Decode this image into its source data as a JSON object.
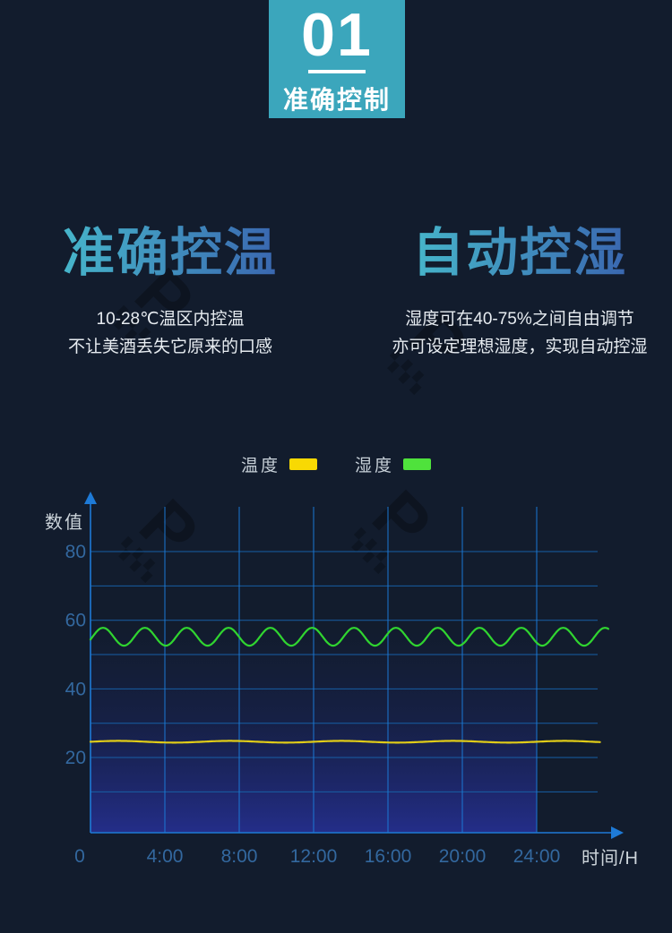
{
  "page": {
    "background": "#121c2d"
  },
  "badge": {
    "number": "01",
    "label": "准确控制",
    "bg_color": "#3ba6bc"
  },
  "features": [
    {
      "title": "准确控温",
      "lines": [
        "10-28℃温区内控温",
        "不让美酒丢失它原来的口感"
      ]
    },
    {
      "title": "自动控湿",
      "lines": [
        "湿度可在40-75%之间自由调节",
        "亦可设定理想湿度，实现自动控湿"
      ]
    }
  ],
  "legend": {
    "items": [
      {
        "label": "温度",
        "swatch_color": "#f8d903"
      },
      {
        "label": "湿度",
        "swatch_color": "#4fe23c"
      }
    ]
  },
  "chart_data": {
    "type": "line",
    "title": "",
    "ylabel": "数值",
    "xlabel": "时间/H",
    "x_tick_labels": [
      "0",
      "4:00",
      "8:00",
      "12:00",
      "16:00",
      "20:00",
      "24:00"
    ],
    "x_tick_hours": [
      0,
      4,
      8,
      12,
      16,
      20,
      24
    ],
    "y_tick_values": [
      20,
      40,
      60,
      80
    ],
    "ylim": [
      0,
      90
    ],
    "xlim_hours": [
      0,
      28.5
    ],
    "grid": true,
    "legend_position": "top-center",
    "series": [
      {
        "name": "温度",
        "color": "#e0cc18",
        "shape": "sine",
        "center": 24.6,
        "amplitude": 0.25,
        "period_hours": 6,
        "phase_hours": 0,
        "end_hour": 27.42,
        "approx_range": [
          24.3,
          24.9
        ]
      },
      {
        "name": "湿度",
        "color": "#30d530",
        "shape": "sine",
        "center": 55.2,
        "amplitude": 2.6,
        "period_hours": 2.25,
        "phase_hours": 0.1125,
        "end_hour": 27.86,
        "approx_range": [
          52.6,
          57.8
        ]
      }
    ]
  },
  "watermark": {
    "text": "P",
    "subtext": "▚▚▚"
  },
  "colors": {
    "headline_gradient_start": "#46b5ca",
    "headline_gradient_end": "#3a67b0",
    "grid_h": "#175fa6",
    "grid_v": "#1b78d5",
    "axis": "#1e7ad6",
    "tick_label": "#33689f",
    "axis_label": "#ccd4da",
    "fill_bottom": "rgba(40,50,160,0.8)"
  }
}
